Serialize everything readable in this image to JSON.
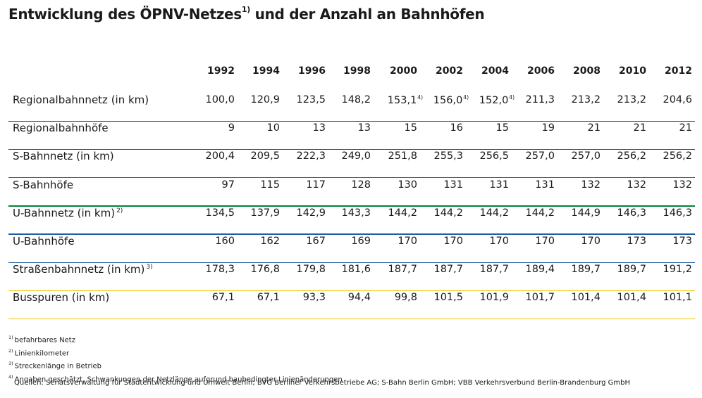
{
  "title": {
    "part1": "Entwicklung des ÖPNV-Netzes",
    "sup": "1)",
    "part2": " und der Anzahl an Bahnhöfen"
  },
  "colors": {
    "red": "#c8102e",
    "green": "#00843d",
    "blue": "#1d5fa0",
    "yellow": "#f2c200"
  },
  "chart_data": {
    "type": "table",
    "years": [
      "1992",
      "1994",
      "1996",
      "1998",
      "2000",
      "2002",
      "2004",
      "2006",
      "2008",
      "2010",
      "2012"
    ],
    "rows": [
      {
        "label": "Regionalbahnnetz (in km)",
        "label_sup": "",
        "color": "red",
        "values": [
          "100,0",
          "120,9",
          "123,5",
          "148,2",
          "153,1",
          "156,0",
          "152,0",
          "211,3",
          "213,2",
          "213,2",
          "204,6"
        ],
        "sups": [
          "",
          "",
          "",
          "",
          "4)",
          "4)",
          "4)",
          "",
          "",
          "",
          ""
        ]
      },
      {
        "label": "Regionalbahnhöfe",
        "label_sup": "",
        "color": "red",
        "values": [
          "9",
          "10",
          "13",
          "13",
          "15",
          "16",
          "15",
          "19",
          "21",
          "21",
          "21"
        ],
        "sups": [
          "",
          "",
          "",
          "",
          "",
          "",
          "",
          "",
          "",
          "",
          ""
        ]
      },
      {
        "label": "S-Bahnnetz (in km)",
        "label_sup": "",
        "color": "green",
        "values": [
          "200,4",
          "209,5",
          "222,3",
          "249,0",
          "251,8",
          "255,3",
          "256,5",
          "257,0",
          "257,0",
          "256,2",
          "256,2"
        ],
        "sups": [
          "",
          "",
          "",
          "",
          "",
          "",
          "",
          "",
          "",
          "",
          ""
        ]
      },
      {
        "label": "S-Bahnhöfe",
        "label_sup": "",
        "color": "green",
        "values": [
          "97",
          "115",
          "117",
          "128",
          "130",
          "131",
          "131",
          "131",
          "132",
          "132",
          "132"
        ],
        "sups": [
          "",
          "",
          "",
          "",
          "",
          "",
          "",
          "",
          "",
          "",
          ""
        ]
      },
      {
        "label": "U-Bahnnetz (in km)",
        "label_sup": "2)",
        "color": "blue",
        "values": [
          "134,5",
          "137,9",
          "142,9",
          "143,3",
          "144,2",
          "144,2",
          "144,2",
          "144,2",
          "144,9",
          "146,3",
          "146,3"
        ],
        "sups": [
          "",
          "",
          "",
          "",
          "",
          "",
          "",
          "",
          "",
          "",
          ""
        ]
      },
      {
        "label": "U-Bahnhöfe",
        "label_sup": "",
        "color": "blue",
        "values": [
          "160",
          "162",
          "167",
          "169",
          "170",
          "170",
          "170",
          "170",
          "170",
          "173",
          "173"
        ],
        "sups": [
          "",
          "",
          "",
          "",
          "",
          "",
          "",
          "",
          "",
          "",
          ""
        ]
      },
      {
        "label": "Straßenbahnnetz (in km)",
        "label_sup": "3)",
        "color": "yellow",
        "values": [
          "178,3",
          "176,8",
          "179,8",
          "181,6",
          "187,7",
          "187,7",
          "187,7",
          "189,4",
          "189,7",
          "189,7",
          "191,2"
        ],
        "sups": [
          "",
          "",
          "",
          "",
          "",
          "",
          "",
          "",
          "",
          "",
          ""
        ]
      },
      {
        "label": "Busspuren (in km)",
        "label_sup": "",
        "color": "yellow",
        "values": [
          "67,1",
          "67,1",
          "93,3",
          "94,4",
          "99,8",
          "101,5",
          "101,9",
          "101,7",
          "101,4",
          "101,4",
          "101,1"
        ],
        "sups": [
          "",
          "",
          "",
          "",
          "",
          "",
          "",
          "",
          "",
          "",
          ""
        ]
      }
    ]
  },
  "footnotes": [
    {
      "mark": "1)",
      "text": "befahrbares Netz"
    },
    {
      "mark": "2)",
      "text": "Linienkilometer"
    },
    {
      "mark": "3)",
      "text": "Streckenlänge in Betrieb"
    },
    {
      "mark": "4)",
      "text": "Angaben geschätzt, Schwankungen der Netzlänge aufgrund baubedingter Linienänderungen"
    }
  ],
  "sources": "Quellen: Senatsverwaltung für Stadtentwicklung und Umwelt Berlin; BVG Berliner Verkehrsbetriebe AG; S-Bahn Berlin GmbH; VBB Verkehrsverbund Berlin-Brandenburg GmbH"
}
